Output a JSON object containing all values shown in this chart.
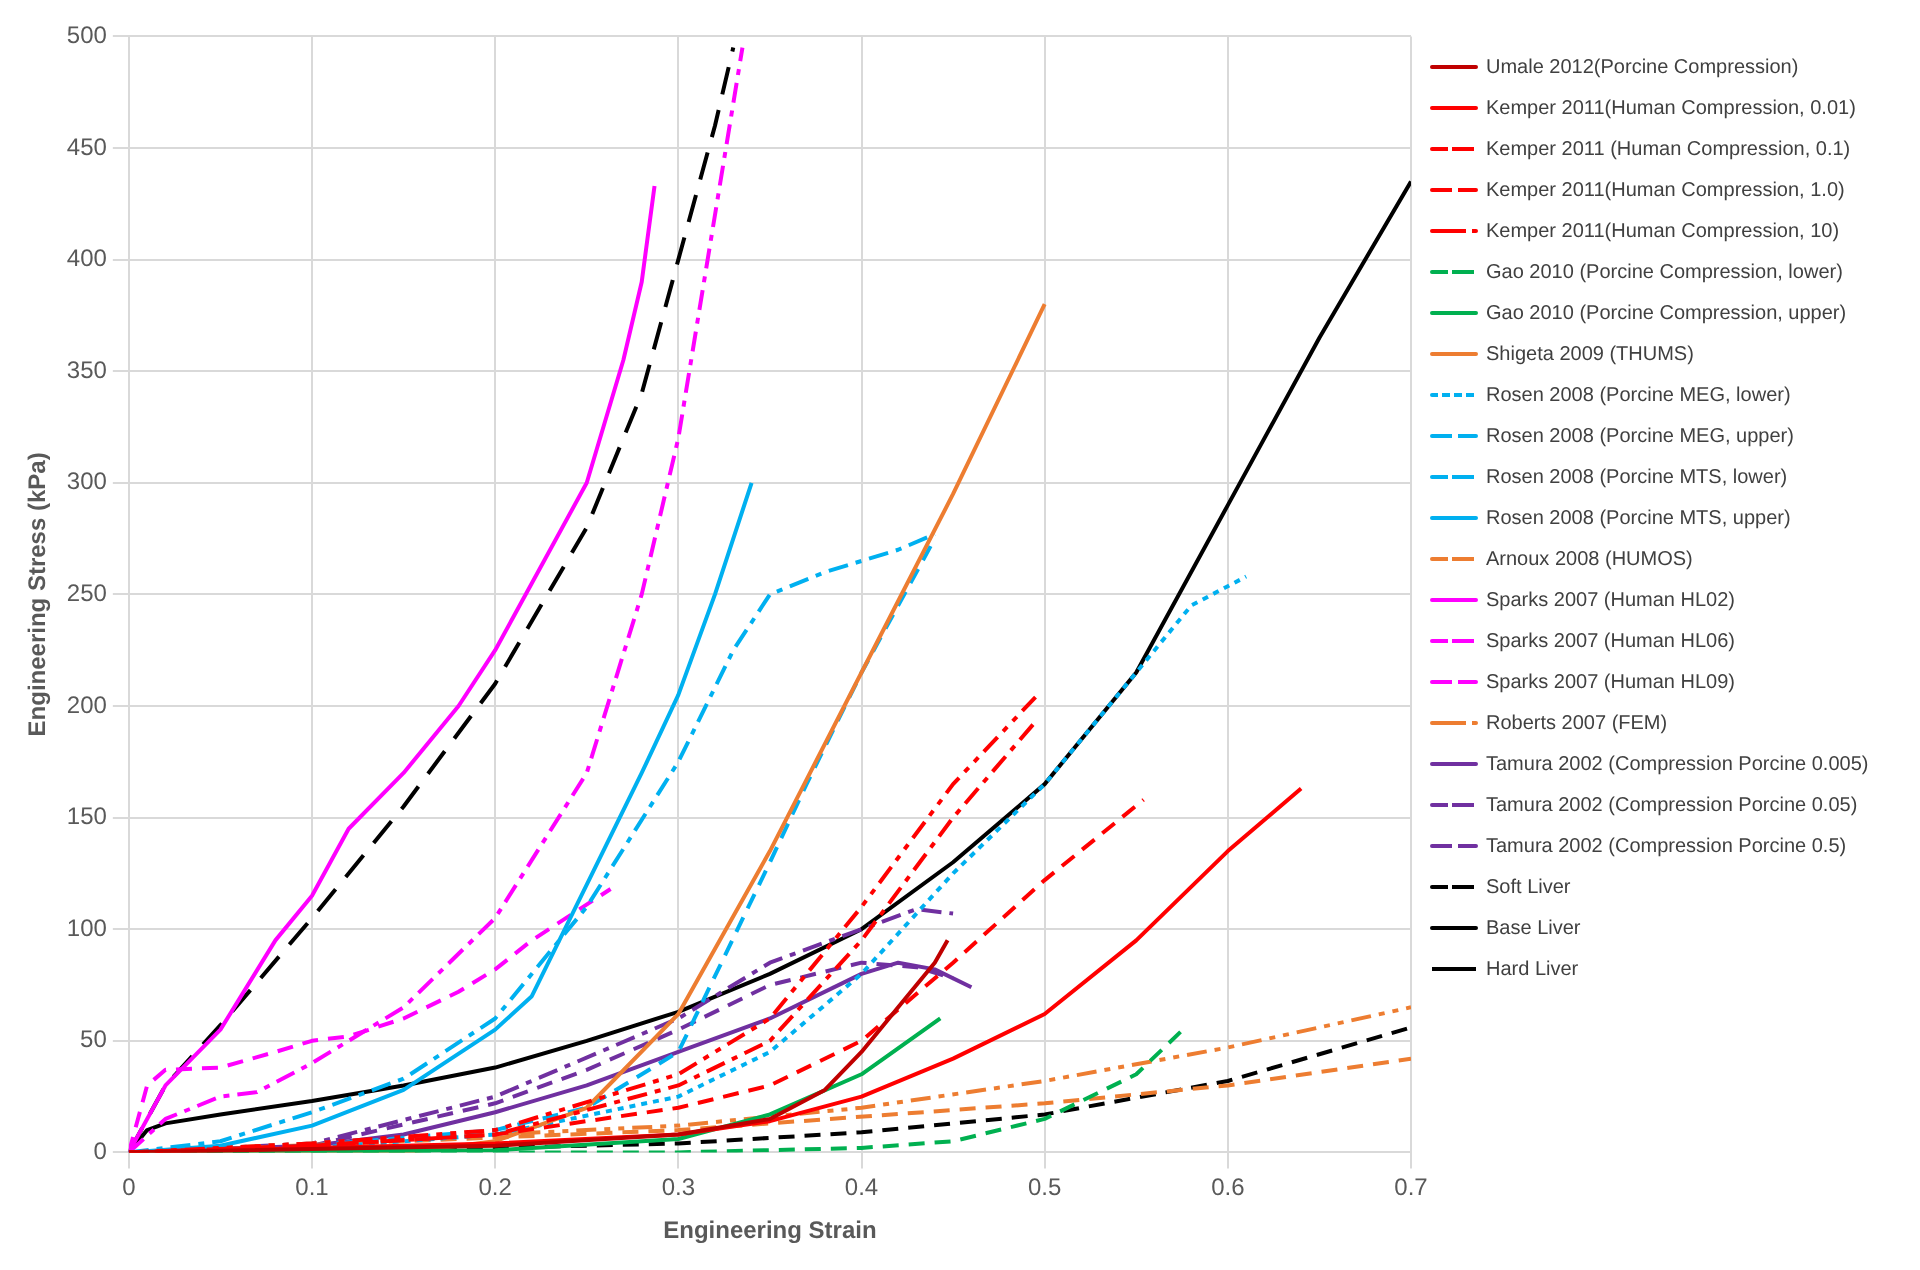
{
  "chart_data": {
    "type": "line",
    "xlabel": "Engineering Strain",
    "ylabel": "Engineering Stress (kPa)",
    "xlim": [
      0,
      0.7
    ],
    "ylim": [
      0,
      500
    ],
    "xticks": [
      0,
      0.1,
      0.2,
      0.3,
      0.4,
      0.5,
      0.6,
      0.7
    ],
    "yticks": [
      0,
      50,
      100,
      150,
      200,
      250,
      300,
      350,
      400,
      450,
      500
    ],
    "grid": true,
    "legend": "right",
    "marker": "none",
    "series": [
      {
        "name": "Umale 2012(Porcine Compression)",
        "color": "#c00000",
        "line_style": "solid",
        "x": [
          0,
          0.2,
          0.3,
          0.35,
          0.38,
          0.4,
          0.42,
          0.44,
          0.447
        ],
        "values": [
          0,
          3,
          8,
          15,
          28,
          45,
          65,
          85,
          95
        ]
      },
      {
        "name": "Kemper 2011(Human Compression, 0.01)",
        "color": "#ff0000",
        "line_style": "solid",
        "x": [
          0,
          0.1,
          0.2,
          0.3,
          0.35,
          0.4,
          0.45,
          0.5,
          0.55,
          0.6,
          0.64
        ],
        "values": [
          0,
          2,
          4,
          8,
          14,
          25,
          42,
          62,
          95,
          135,
          163
        ]
      },
      {
        "name": "Kemper 2011 (Human Compression, 0.1)",
        "color": "#ff0000",
        "line_style": "dashed",
        "x": [
          0,
          0.1,
          0.2,
          0.3,
          0.35,
          0.4,
          0.45,
          0.5,
          0.554
        ],
        "values": [
          0,
          3,
          8,
          20,
          30,
          50,
          85,
          122,
          158
        ]
      },
      {
        "name": "Kemper 2011(Human Compression, 1.0)",
        "color": "#ff0000",
        "line_style": "dashdot",
        "x": [
          0,
          0.1,
          0.2,
          0.3,
          0.35,
          0.4,
          0.45,
          0.495
        ],
        "values": [
          0,
          3,
          8,
          30,
          50,
          95,
          150,
          193
        ]
      },
      {
        "name": "Kemper 2011(Human Compression, 10)",
        "color": "#ff0000",
        "line_style": "dashdotdot",
        "x": [
          0,
          0.1,
          0.2,
          0.3,
          0.35,
          0.4,
          0.45,
          0.495
        ],
        "values": [
          0,
          4,
          10,
          35,
          60,
          110,
          165,
          204
        ]
      },
      {
        "name": "Gao 2010 (Porcine Compression, lower)",
        "color": "#00b050",
        "line_style": "dashed",
        "x": [
          0,
          0.3,
          0.4,
          0.45,
          0.5,
          0.55,
          0.578
        ],
        "values": [
          0,
          0,
          2,
          5,
          15,
          35,
          57
        ]
      },
      {
        "name": "Gao 2010 (Porcine Compression, upper)",
        "color": "#00b050",
        "line_style": "solid",
        "x": [
          0,
          0.2,
          0.3,
          0.35,
          0.4,
          0.443
        ],
        "values": [
          0,
          1,
          6,
          17,
          35,
          60
        ]
      },
      {
        "name": "Shigeta 2009 (THUMS)",
        "color": "#ed7d31",
        "line_style": "solid",
        "x": [
          0,
          0.15,
          0.2,
          0.25,
          0.3,
          0.35,
          0.4,
          0.45,
          0.5
        ],
        "values": [
          0,
          0,
          5,
          20,
          62,
          135,
          215,
          295,
          380
        ]
      },
      {
        "name": "Rosen 2008 (Porcine MEG, lower)",
        "color": "#00b0f0",
        "line_style": "dotted",
        "x": [
          0,
          0.1,
          0.2,
          0.3,
          0.35,
          0.4,
          0.45,
          0.5,
          0.55,
          0.58,
          0.61
        ],
        "values": [
          0,
          2,
          8,
          25,
          45,
          80,
          125,
          165,
          215,
          245,
          258
        ]
      },
      {
        "name": "Rosen 2008 (Porcine MEG, upper)",
        "color": "#00b0f0",
        "line_style": "dashdot",
        "x": [
          0,
          0.05,
          0.1,
          0.15,
          0.2,
          0.25,
          0.3,
          0.33,
          0.35,
          0.38,
          0.42,
          0.44
        ],
        "values": [
          0,
          5,
          18,
          33,
          60,
          110,
          175,
          225,
          250,
          260,
          270,
          277
        ]
      },
      {
        "name": "Rosen 2008 (Porcine MTS, lower)",
        "color": "#00b0f0",
        "line_style": "dashed",
        "x": [
          0,
          0.1,
          0.2,
          0.25,
          0.3,
          0.35,
          0.37,
          0.4,
          0.44
        ],
        "values": [
          0,
          3,
          10,
          20,
          45,
          130,
          165,
          215,
          275
        ]
      },
      {
        "name": "Rosen 2008 (Porcine MTS, upper)",
        "color": "#00b0f0",
        "line_style": "solid",
        "x": [
          0,
          0.05,
          0.1,
          0.15,
          0.2,
          0.22,
          0.25,
          0.28,
          0.3,
          0.32,
          0.34
        ],
        "values": [
          0,
          3,
          12,
          28,
          55,
          70,
          120,
          170,
          205,
          250,
          300
        ]
      },
      {
        "name": "Arnoux 2008 (HUMOS)",
        "color": "#ed7d31",
        "line_style": "dashed",
        "x": [
          0,
          0.3,
          0.5,
          0.6,
          0.7
        ],
        "values": [
          0,
          10,
          22,
          30,
          42
        ]
      },
      {
        "name": "Sparks 2007 (Human HL02)",
        "color": "#ff00ff",
        "line_style": "solid",
        "x": [
          0,
          0.02,
          0.05,
          0.08,
          0.1,
          0.12,
          0.15,
          0.18,
          0.2,
          0.22,
          0.25,
          0.27,
          0.28,
          0.287
        ],
        "values": [
          0,
          30,
          55,
          95,
          115,
          145,
          170,
          200,
          225,
          255,
          300,
          355,
          390,
          433
        ]
      },
      {
        "name": "Sparks 2007 (Human HL06)",
        "color": "#ff00ff",
        "line_style": "dashed",
        "x": [
          0,
          0.01,
          0.02,
          0.05,
          0.08,
          0.1,
          0.12,
          0.15,
          0.18,
          0.2,
          0.22,
          0.263
        ],
        "values": [
          0,
          30,
          37,
          38,
          45,
          50,
          52,
          60,
          72,
          82,
          95,
          118
        ]
      },
      {
        "name": "Sparks 2007 (Human HL09)",
        "color": "#ff00ff",
        "line_style": "dashdot",
        "x": [
          0,
          0.02,
          0.05,
          0.07,
          0.1,
          0.15,
          0.2,
          0.25,
          0.28,
          0.3,
          0.32,
          0.335
        ],
        "values": [
          0,
          15,
          25,
          27,
          40,
          65,
          105,
          170,
          250,
          320,
          420,
          495
        ]
      },
      {
        "name": "Roberts 2007 (FEM)",
        "color": "#ed7d31",
        "line_style": "dashdotdot",
        "x": [
          0,
          0.3,
          0.4,
          0.5,
          0.6,
          0.7
        ],
        "values": [
          0,
          12,
          20,
          32,
          47,
          65
        ]
      },
      {
        "name": "Tamura 2002 (Compression Porcine 0.005)",
        "color": "#7030a0",
        "line_style": "solid",
        "x": [
          0,
          0.1,
          0.15,
          0.2,
          0.25,
          0.3,
          0.35,
          0.4,
          0.42,
          0.44,
          0.46
        ],
        "values": [
          0,
          3,
          8,
          18,
          30,
          45,
          60,
          80,
          85,
          82,
          74
        ]
      },
      {
        "name": "Tamura 2002 (Compression Porcine 0.05)",
        "color": "#7030a0",
        "line_style": "dashed",
        "x": [
          0,
          0.1,
          0.2,
          0.25,
          0.3,
          0.35,
          0.4,
          0.43,
          0.45
        ],
        "values": [
          0,
          3,
          22,
          37,
          55,
          75,
          85,
          83,
          78
        ]
      },
      {
        "name": "Tamura 2002 (Compression Porcine 0.5)",
        "color": "#7030a0",
        "line_style": "dashdot",
        "x": [
          0,
          0.1,
          0.2,
          0.3,
          0.35,
          0.4,
          0.43,
          0.45
        ],
        "values": [
          0,
          4,
          25,
          60,
          85,
          100,
          109,
          107
        ]
      },
      {
        "name": "Soft Liver",
        "color": "#000000",
        "line_style": "dashed",
        "x": [
          0,
          0.1,
          0.2,
          0.3,
          0.4,
          0.5,
          0.6,
          0.7
        ],
        "values": [
          0,
          1,
          2,
          4,
          9,
          17,
          32,
          56
        ]
      },
      {
        "name": "Base Liver",
        "color": "#000000",
        "line_style": "solid",
        "x": [
          0,
          0.01,
          0.02,
          0.05,
          0.1,
          0.15,
          0.2,
          0.25,
          0.3,
          0.35,
          0.4,
          0.45,
          0.5,
          0.55,
          0.6,
          0.65,
          0.7
        ],
        "values": [
          0,
          10,
          13,
          17,
          23,
          30,
          38,
          50,
          63,
          80,
          100,
          130,
          165,
          215,
          290,
          365,
          435
        ]
      },
      {
        "name": "Hard Liver",
        "color": "#000000",
        "line_style": "longdash",
        "x": [
          0,
          0.02,
          0.05,
          0.1,
          0.15,
          0.2,
          0.25,
          0.28,
          0.3,
          0.32,
          0.33
        ],
        "values": [
          0,
          30,
          57,
          105,
          155,
          210,
          280,
          340,
          400,
          460,
          495
        ]
      }
    ]
  }
}
